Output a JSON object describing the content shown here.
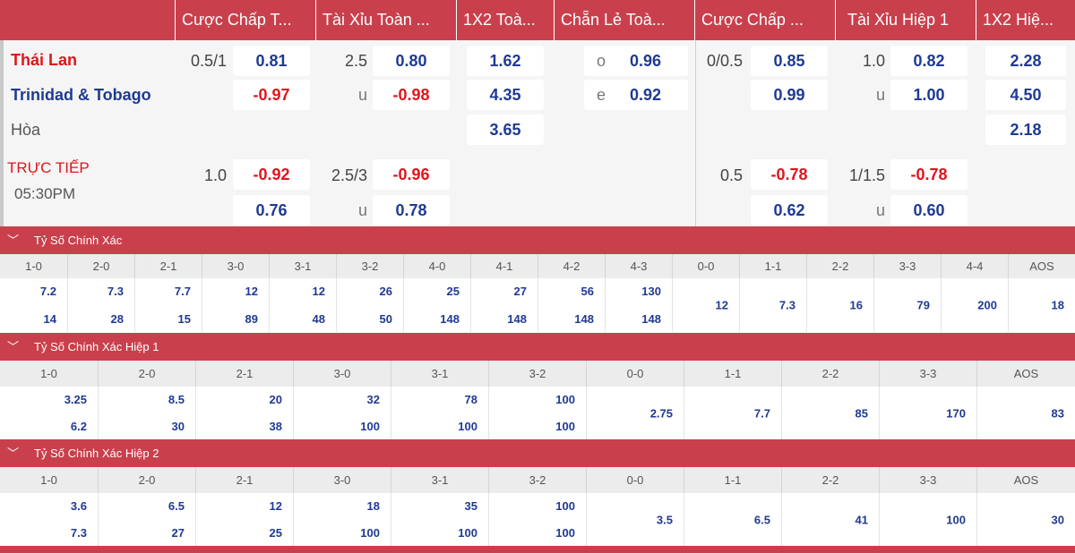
{
  "headers": [
    "Cược Chấp T...",
    "Tài Xỉu Toàn ...",
    "1X2 Toà...",
    "Chẵn Lẻ Toà...",
    "Cược Chấp ...",
    "Tài Xỉu Hiệp 1",
    "1X2 Hiệ..."
  ],
  "match": {
    "home": "Thái Lan",
    "away": "Trinidad & Tobago",
    "draw": "Hòa",
    "status": "TRỰC TIẾP",
    "time": "05:30PM"
  },
  "odds": {
    "row1": {
      "h1": "0.5/1",
      "o1": "0.81",
      "h2": "2.5",
      "o2": "0.80",
      "x2": "1.62",
      "oe_l": "o",
      "oe_v": "0.96",
      "h3": "0/0.5",
      "o3": "0.85",
      "h4": "1.0",
      "o4": "0.82",
      "x2h": "2.28"
    },
    "row2": {
      "o1": "-0.97",
      "u": "u",
      "o2": "-0.98",
      "x2": "4.35",
      "oe_l": "e",
      "oe_v": "0.92",
      "o3": "0.99",
      "o4": "1.00",
      "x2h": "4.50"
    },
    "row3": {
      "x2": "3.65",
      "x2h": "2.18"
    },
    "live1": {
      "h1": "1.0",
      "o1": "-0.92",
      "h2": "2.5/3",
      "o2": "-0.96",
      "h3": "0.5",
      "o3": "-0.78",
      "h4": "1/1.5",
      "o4": "-0.78"
    },
    "live2": {
      "o1": "0.76",
      "u": "u",
      "o2": "0.78",
      "o3": "0.62",
      "o4": "0.60"
    }
  },
  "sections": [
    {
      "title": "Tỷ Số Chính Xác",
      "scores": [
        "1-0",
        "2-0",
        "2-1",
        "3-0",
        "3-1",
        "3-2",
        "4-0",
        "4-1",
        "4-2",
        "4-3",
        "0-0",
        "1-1",
        "2-2",
        "3-3",
        "4-4",
        "AOS"
      ],
      "top": [
        "7.2",
        "7.3",
        "7.7",
        "12",
        "12",
        "26",
        "25",
        "27",
        "56",
        "130"
      ],
      "bottom": [
        "14",
        "28",
        "15",
        "89",
        "48",
        "50",
        "148",
        "148",
        "148",
        "148"
      ],
      "single": [
        "12",
        "7.3",
        "16",
        "79",
        "200",
        "18"
      ]
    },
    {
      "title": "Tỷ Số Chính Xác Hiệp 1",
      "scores": [
        "1-0",
        "2-0",
        "2-1",
        "3-0",
        "3-1",
        "3-2",
        "0-0",
        "1-1",
        "2-2",
        "3-3",
        "AOS"
      ],
      "top": [
        "3.25",
        "8.5",
        "20",
        "32",
        "78",
        "100"
      ],
      "bottom": [
        "6.2",
        "30",
        "38",
        "100",
        "100",
        "100"
      ],
      "single": [
        "2.75",
        "7.7",
        "85",
        "170",
        "83"
      ]
    },
    {
      "title": "Tỷ Số Chính Xác Hiệp 2",
      "scores": [
        "1-0",
        "2-0",
        "2-1",
        "3-0",
        "3-1",
        "3-2",
        "0-0",
        "1-1",
        "2-2",
        "3-3",
        "AOS"
      ],
      "top": [
        "3.6",
        "6.5",
        "12",
        "18",
        "35",
        "100"
      ],
      "bottom": [
        "7.3",
        "27",
        "25",
        "100",
        "100",
        "100"
      ],
      "single": [
        "3.5",
        "6.5",
        "41",
        "100",
        "30"
      ]
    }
  ]
}
